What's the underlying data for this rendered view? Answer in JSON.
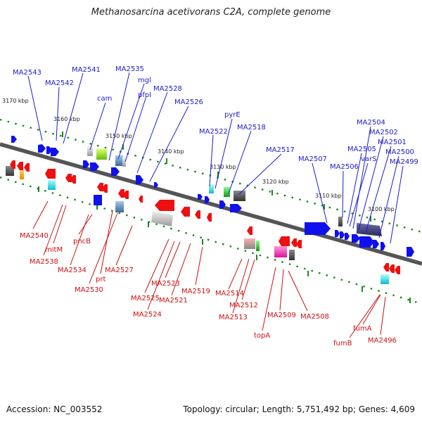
{
  "title": "Methanosarcina acetivorans C2A, complete genome",
  "footer": {
    "accession": "Accession: NC_003552",
    "summary": "Topology: circular; Length: 5,751,492 bp; Genes: 4,609"
  },
  "scale_labels": [
    "3170 kbp",
    "3160 kbp",
    "3150 kbp",
    "3140 kbp",
    "3130 kbp",
    "3120 kbp",
    "3110 kbp",
    "3100 kbp"
  ],
  "top_strand_genes": [
    "MA2543",
    "MA2542",
    "MA2541",
    "MA2535",
    "cam",
    "mgl",
    "pfpI",
    "MA2528",
    "MA2526",
    "MA2522",
    "pyrE",
    "MA2518",
    "MA2517",
    "MA2507",
    "MA2506",
    "MA2505",
    "varS",
    "MA2504",
    "MA2502",
    "MA2501",
    "MA2500",
    "MA2499"
  ],
  "bottom_strand_genes": [
    "MA2540",
    "mitM",
    "MA2538",
    "pncB",
    "MA2534",
    "prt",
    "MA2530",
    "MA2527",
    "MA2525",
    "MA2524",
    "MA2523",
    "MA2521",
    "MA2519",
    "MA2514",
    "MA2512",
    "MA2513",
    "topA",
    "MA2509",
    "MA2508",
    "fumB",
    "fumA",
    "MA2496"
  ],
  "colors": {
    "top_label": "#1c1ccc",
    "bottom_label": "#cc1111",
    "forward_gene": "#1010ee",
    "reverse_gene": "#ee1010",
    "backbone": "#555555",
    "tick_dots": "#1a8a1a"
  }
}
